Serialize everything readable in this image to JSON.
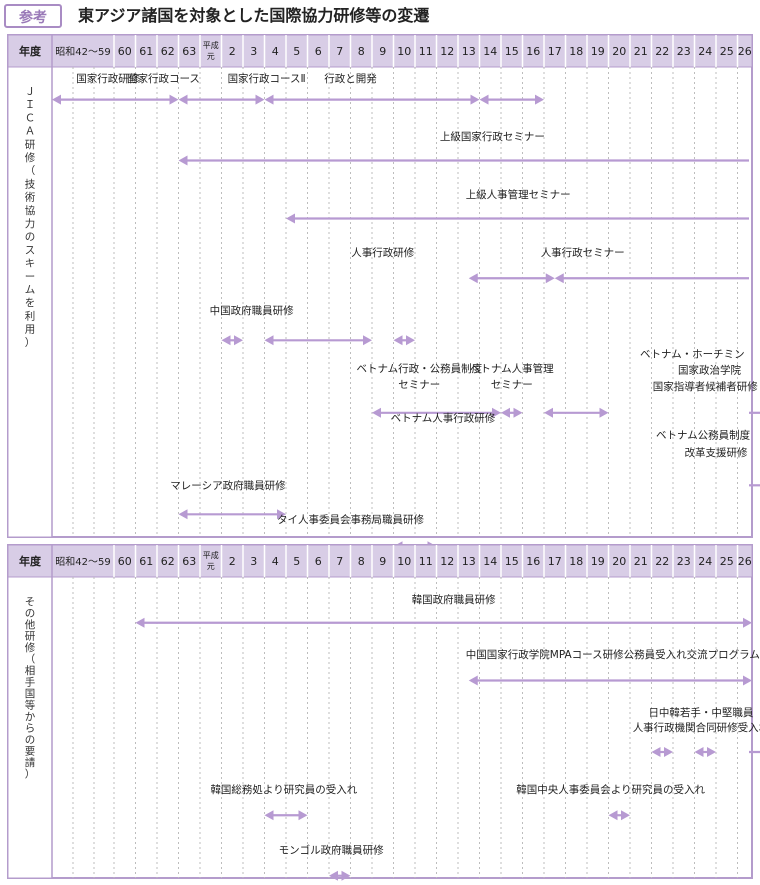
{
  "header": {
    "badge": "参考",
    "title": "東アジア諸国を対象とした国際協力研修等の変遷"
  },
  "colors": {
    "accent": "#b49ccc",
    "header_bg": "#d8cde6",
    "arrow": "#b79ad2",
    "grid": "#bdbdbd"
  },
  "columns": [
    "昭和42〜59",
    "60",
    "61",
    "62",
    "63",
    "平成元",
    "2",
    "3",
    "4",
    "5",
    "6",
    "7",
    "8",
    "9",
    "10",
    "11",
    "12",
    "13",
    "14",
    "15",
    "16",
    "17",
    "18",
    "19",
    "20",
    "21",
    "22",
    "23",
    "24",
    "25",
    "26"
  ],
  "year_label": "年度",
  "sections": [
    {
      "label": "ＪＩＣＡ研修（技術協力のスキームを利用）",
      "labels": [
        {
          "text": "国家行政研修",
          "col": 0.9,
          "row": 0
        },
        {
          "text": "国家行政コース",
          "col": 3.3,
          "row": 0
        },
        {
          "text": "国家行政コースⅡ",
          "col": 8.1,
          "row": 0
        },
        {
          "text": "行政と開発",
          "col": 12.0,
          "row": 0
        },
        {
          "text": "上級国家行政セミナー",
          "col": 18.6,
          "row": 1
        },
        {
          "text": "上級人事管理セミナー",
          "col": 19.8,
          "row": 2
        },
        {
          "text": "人事行政研修",
          "col": 13.5,
          "row": 3
        },
        {
          "text": "人事行政セミナー",
          "col": 22.8,
          "row": 3
        },
        {
          "text": "中国政府職員研修",
          "col": 7.4,
          "row": 4
        },
        {
          "text": "ベトナム行政・公務員制度",
          "col": 15.2,
          "row": 5
        },
        {
          "text": "セミナー",
          "col": 15.2,
          "row": 5.28
        },
        {
          "text": "ベトナム人事管理",
          "col": 19.5,
          "row": 5
        },
        {
          "text": "セミナー",
          "col": 19.5,
          "row": 5.28
        },
        {
          "text": "ベトナム・ホーチミン",
          "col": 27.9,
          "row": 4.75
        },
        {
          "text": "国家政治学院",
          "col": 28.7,
          "row": 5.03
        },
        {
          "text": "国家指導者候補者研修",
          "col": 28.5,
          "row": 5.31
        },
        {
          "text": "ベトナム人事行政研修",
          "col": 16.3,
          "row": 5.85
        },
        {
          "text": "ベトナム公務員制度",
          "col": 28.4,
          "row": 6.15
        },
        {
          "text": "改革支援研修",
          "col": 29.0,
          "row": 6.45
        },
        {
          "text": "マレーシア政府職員研修",
          "col": 6.3,
          "row": 7.02
        },
        {
          "text": "タイ人事委員会事務局職員研修",
          "col": 12.0,
          "row": 7.6
        }
      ],
      "arrows": [
        {
          "from": 0,
          "to": 4.0,
          "row": 0.2
        },
        {
          "from": 4.0,
          "to": 8.0,
          "row": 0.2
        },
        {
          "from": 8.0,
          "to": 18.0,
          "row": 0.2
        },
        {
          "from": 18.0,
          "to": 21.0,
          "row": 0.2
        },
        {
          "from": 4.0,
          "to": 33.0,
          "row": 1.25
        },
        {
          "from": 9.0,
          "to": 33.0,
          "row": 2.25
        },
        {
          "from": 17.5,
          "to": 21.5,
          "row": 3.28
        },
        {
          "from": 21.5,
          "to": 33.0,
          "row": 3.28
        },
        {
          "from": 6.0,
          "to": 7.0,
          "row": 4.35
        },
        {
          "from": 8.0,
          "to": 13.0,
          "row": 4.35
        },
        {
          "from": 14.0,
          "to": 15.0,
          "row": 4.35
        },
        {
          "from": 13.0,
          "to": 19.0,
          "row": 5.6
        },
        {
          "from": 19.0,
          "to": 20.0,
          "row": 5.6
        },
        {
          "from": 21.0,
          "to": 24.0,
          "row": 5.6
        },
        {
          "from": 31.0,
          "to": 33.0,
          "row": 5.6
        },
        {
          "from": 31.0,
          "to": 33.0,
          "row": 6.85
        },
        {
          "from": 4.0,
          "to": 9.0,
          "row": 7.35
        },
        {
          "from": 14.0,
          "to": 16.0,
          "row": 7.9
        }
      ]
    },
    {
      "label": "その他研修（相手国等からの要請）",
      "labels": [
        {
          "text": "韓国政府職員研修",
          "col": 16.8,
          "row": 0
        },
        {
          "text": "中国国家行政学院MPAコース研修公務員受入れ交流プログラム",
          "col": 24.2,
          "row": 1
        },
        {
          "text": "日中韓若手・中堅職員",
          "col": 28.3,
          "row": 2.05
        },
        {
          "text": "人事行政機関合同研修受入れ",
          "col": 28.3,
          "row": 2.33
        },
        {
          "text": "韓国総務処より研究員の受入れ",
          "col": 8.9,
          "row": 3.45
        },
        {
          "text": "韓国中央人事委員会より研究員の受入れ",
          "col": 24.1,
          "row": 3.45
        },
        {
          "text": "モンゴル政府職員研修",
          "col": 11.1,
          "row": 4.55
        }
      ],
      "arrows": [
        {
          "from": 2.0,
          "to": 32.0,
          "row": 0.25
        },
        {
          "from": 17.5,
          "to": 31.0,
          "row": 1.3
        },
        {
          "from": 26.0,
          "to": 27.0,
          "row": 2.6
        },
        {
          "from": 28.0,
          "to": 29.0,
          "row": 2.6
        },
        {
          "from": 32.0,
          "to": 33.0,
          "row": 2.6
        },
        {
          "from": 8.0,
          "to": 10.0,
          "row": 3.75
        },
        {
          "from": 24.0,
          "to": 25.0,
          "row": 3.75
        },
        {
          "from": 11.0,
          "to": 12.0,
          "row": 4.85
        }
      ]
    }
  ]
}
